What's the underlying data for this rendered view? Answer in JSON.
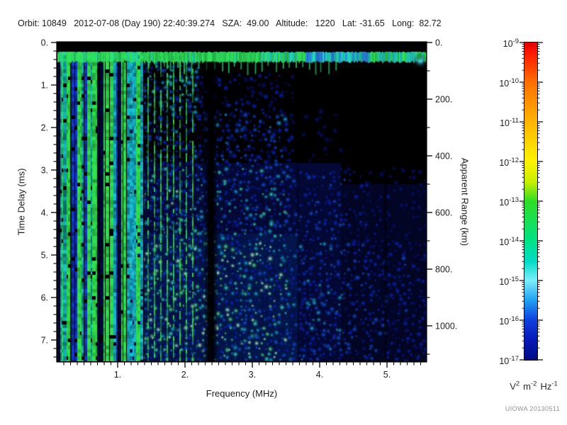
{
  "header": {
    "line": "Orbit: 10849   2012-07-08 (Day 190) 22:40:39.274   SZA:  49.00   Altitude:   1220   Lat: -31.65   Long:  82.72",
    "orbit": "10849",
    "datetime": "2012-07-08 (Day 190) 22:40:39.274",
    "sza": "49.00",
    "altitude": "1220",
    "lat": "-31.65",
    "long": "82.72"
  },
  "watermark": "UIOWA 20130511",
  "chart_data": {
    "type": "heatmap",
    "subtype": "radar-sounder-ionogram-spectrogram",
    "background": "#000000",
    "x_axis": {
      "label": "Frequency (MHz)",
      "range": [
        0.105,
        5.58
      ],
      "major_tick_values": [
        1,
        2,
        3,
        4,
        5
      ],
      "major_tick_labels": [
        "1.",
        "2.",
        "3.",
        "4.",
        "5."
      ],
      "minor_tick_step": 0.1
    },
    "y_axis_left": {
      "label": "Time Delay (ms)",
      "range": [
        0,
        7.5
      ],
      "direction": "increasing downward",
      "major_tick_values": [
        0,
        1,
        2,
        3,
        4,
        5,
        6,
        7
      ],
      "major_tick_labels": [
        "0.",
        "1.",
        "2.",
        "3.",
        "4.",
        "5.",
        "6.",
        "7."
      ],
      "minor_tick_step": 0.2
    },
    "y_axis_right": {
      "label": "Apparent Range (km)",
      "range": [
        0,
        1125
      ],
      "major_tick_values": [
        0,
        200,
        400,
        600,
        800,
        1000
      ],
      "major_tick_labels": [
        "0.",
        "200.",
        "400.",
        "600.",
        "800.",
        "1000."
      ],
      "minor_tick_step": 100
    },
    "colorbar": {
      "scale": "log",
      "max_label_exponent": -9,
      "min_label_exponent": -17,
      "tick_exponents": [
        -9,
        -10,
        -11,
        -12,
        -13,
        -14,
        -15,
        -16,
        -17
      ],
      "tick_labels": [
        "10⁻⁹",
        "10⁻¹⁰",
        "10⁻¹¹",
        "10⁻¹²",
        "10⁻¹³",
        "10⁻¹⁴",
        "10⁻¹⁵",
        "10⁻¹⁶",
        "10⁻¹⁷"
      ],
      "units": "V² m⁻² Hz⁻¹",
      "units_parts": [
        {
          "base": "V",
          "exp": "2"
        },
        {
          "base": "m",
          "exp": "-2"
        },
        {
          "base": "Hz",
          "exp": "-1"
        }
      ],
      "gradient": [
        {
          "pos": 0,
          "color": "#dd0000"
        },
        {
          "pos": 3,
          "color": "#ff1500"
        },
        {
          "pos": 12.5,
          "color": "#ff6f00"
        },
        {
          "pos": 25,
          "color": "#ffb400"
        },
        {
          "pos": 37.5,
          "color": "#fdf300"
        },
        {
          "pos": 44,
          "color": "#c6ef00"
        },
        {
          "pos": 50,
          "color": "#2ede25"
        },
        {
          "pos": 62.5,
          "color": "#00e287"
        },
        {
          "pos": 69,
          "color": "#00dcc6"
        },
        {
          "pos": 75,
          "color": "#7deefc"
        },
        {
          "pos": 81,
          "color": "#22a4f2"
        },
        {
          "pos": 87.5,
          "color": "#0f3fe0"
        },
        {
          "pos": 94,
          "color": "#0617b4"
        },
        {
          "pos": 100,
          "color": "#000d85"
        }
      ]
    },
    "features": [
      {
        "name": "leading-edge-echo-band",
        "description": "Bright green/cyan horizontal echo band of strongest return just below zero delay, spanning all frequencies",
        "time_delay_ms": [
          0.22,
          0.47
        ],
        "frequency_mhz": [
          0.1,
          5.58
        ]
      },
      {
        "name": "plasma-oscillation-harmonics",
        "description": "Dense vertical green/cyan harmonic stripes at low frequencies spanning all time delays",
        "frequency_mhz": [
          0.1,
          1.45
        ],
        "time_delay_ms": [
          0.22,
          7.5
        ]
      },
      {
        "name": "receiver-band-gap",
        "description": "Black vertical gap with no signal near 2.4 MHz",
        "frequency_mhz": [
          2.33,
          2.43
        ]
      },
      {
        "name": "diffuse-ionospheric-scatter",
        "description": "Diffuse blue/cyan speckle, brightest between 1.5 and 3.5 MHz at delays greater than 2 ms, fading and darkening toward higher frequencies; nearly black just below the echo band above 3 MHz"
      }
    ]
  }
}
